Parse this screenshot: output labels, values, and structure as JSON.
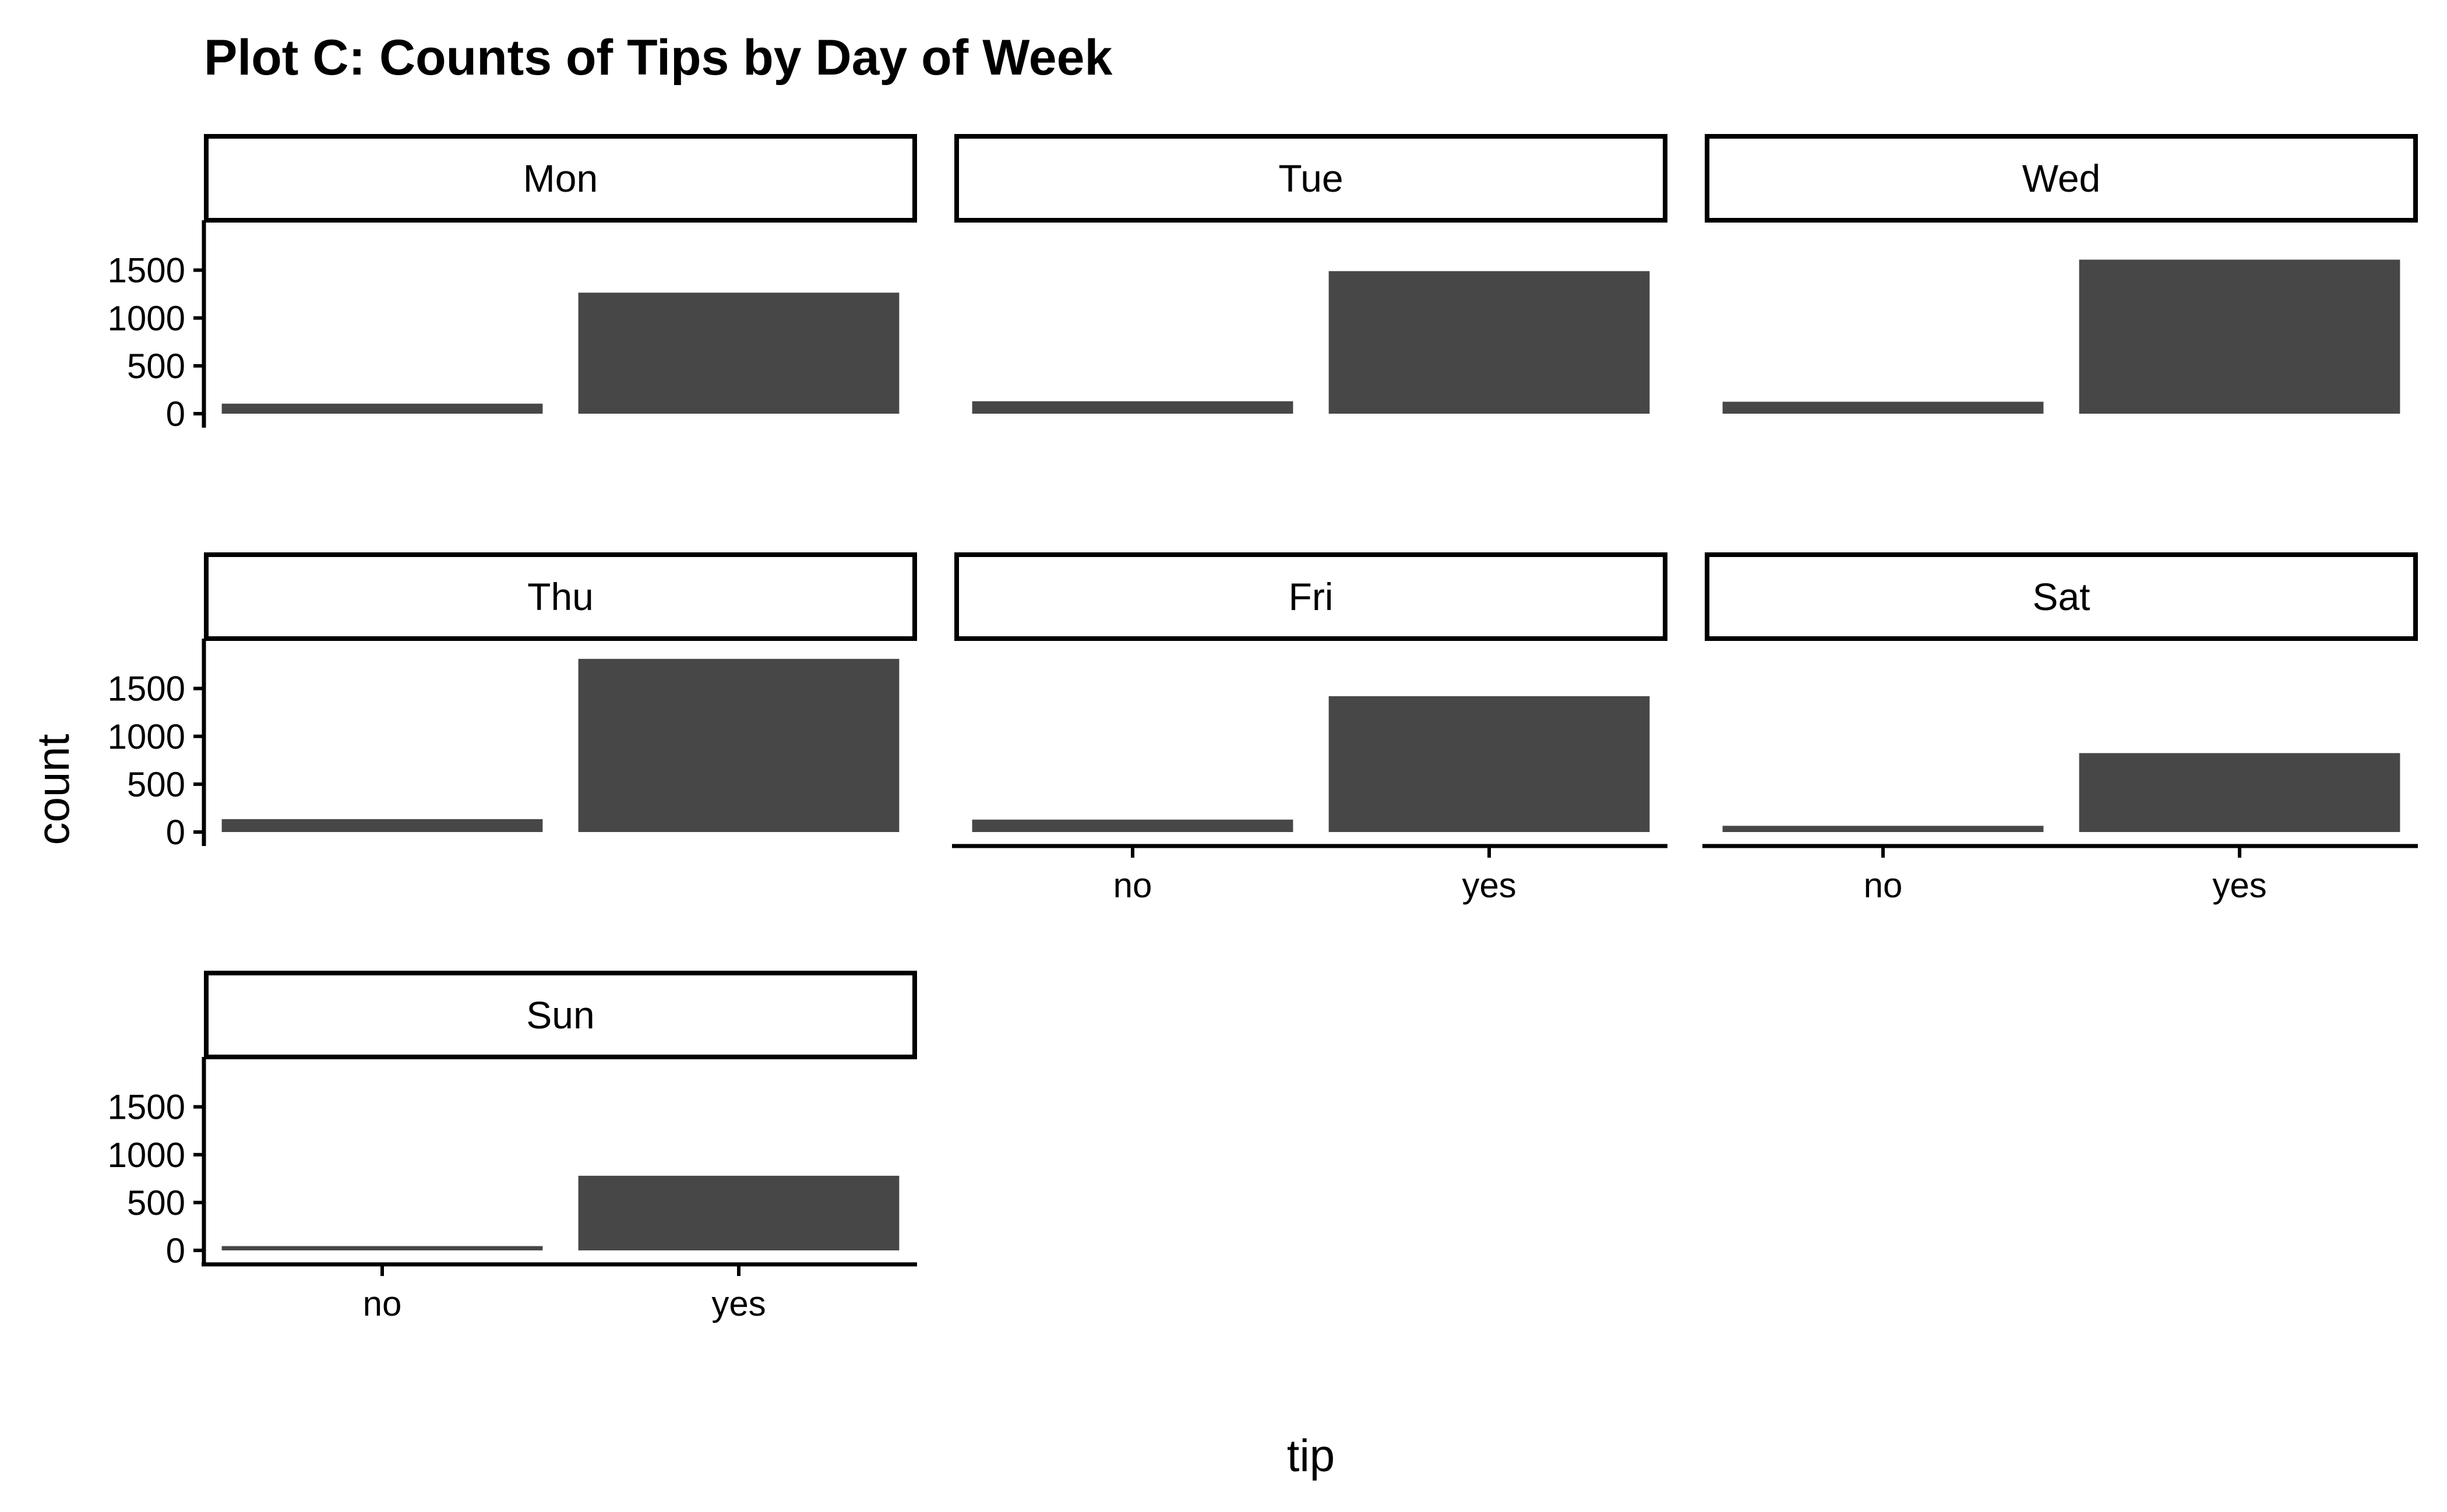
{
  "chart_data": {
    "type": "bar",
    "title": "Plot C: Counts of Tips by Day of Week",
    "xlabel": "tip",
    "ylabel": "count",
    "categories": [
      "no",
      "yes"
    ],
    "ylim": [
      0,
      1900
    ],
    "yticks": [
      0,
      500,
      1000,
      1500
    ],
    "ytick_labels": [
      "0",
      "500",
      "1000",
      "1500"
    ],
    "bar_color": "#474747",
    "facets": [
      {
        "label": "Mon",
        "values": [
          105,
          1265
        ]
      },
      {
        "label": "Tue",
        "values": [
          130,
          1490
        ]
      },
      {
        "label": "Wed",
        "values": [
          125,
          1610
        ]
      },
      {
        "label": "Thu",
        "values": [
          135,
          1810
        ]
      },
      {
        "label": "Fri",
        "values": [
          130,
          1420
        ]
      },
      {
        "label": "Sat",
        "values": [
          65,
          825
        ]
      },
      {
        "label": "Sun",
        "values": [
          45,
          780
        ]
      }
    ]
  }
}
